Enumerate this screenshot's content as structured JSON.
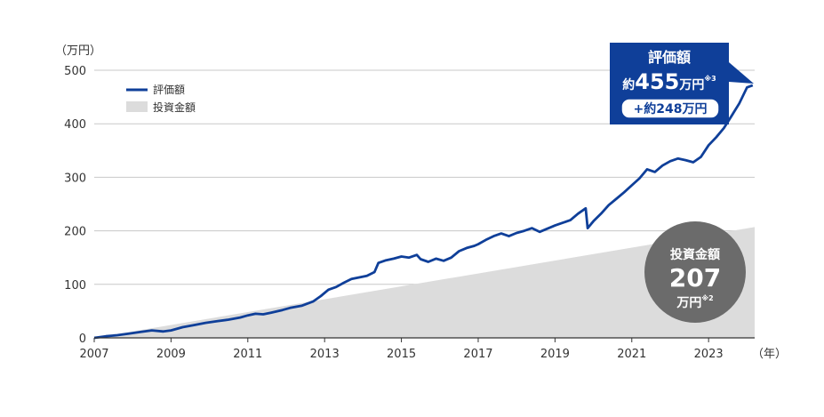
{
  "chart_data": {
    "type": "area",
    "y_unit_label": "（万円）",
    "x_unit_label": "（年）",
    "x_ticks": [
      "2007",
      "2009",
      "2011",
      "2013",
      "2015",
      "2017",
      "2019",
      "2021",
      "2023"
    ],
    "y_ticks": [
      "0",
      "100",
      "200",
      "300",
      "400",
      "500"
    ],
    "xlim": [
      2007,
      2024.2
    ],
    "ylim": [
      0,
      500
    ],
    "grid": true,
    "legend_position": "top-left",
    "colors": {
      "valuation": "#0f3f99",
      "investment": "#dcdcdc",
      "callout": "#0f3f99",
      "bubble": "#6b6b6b"
    },
    "series": [
      {
        "name": "評価額",
        "kind": "line",
        "points": [
          [
            2007.0,
            0
          ],
          [
            2007.3,
            3
          ],
          [
            2007.6,
            5
          ],
          [
            2007.9,
            8
          ],
          [
            2008.2,
            11
          ],
          [
            2008.5,
            14
          ],
          [
            2008.8,
            12
          ],
          [
            2009.0,
            14
          ],
          [
            2009.3,
            20
          ],
          [
            2009.6,
            24
          ],
          [
            2009.9,
            28
          ],
          [
            2010.2,
            31
          ],
          [
            2010.5,
            34
          ],
          [
            2010.8,
            38
          ],
          [
            2011.0,
            42
          ],
          [
            2011.2,
            45
          ],
          [
            2011.4,
            44
          ],
          [
            2011.6,
            47
          ],
          [
            2011.9,
            52
          ],
          [
            2012.1,
            56
          ],
          [
            2012.4,
            60
          ],
          [
            2012.7,
            68
          ],
          [
            2012.9,
            78
          ],
          [
            2013.1,
            90
          ],
          [
            2013.3,
            95
          ],
          [
            2013.5,
            103
          ],
          [
            2013.7,
            110
          ],
          [
            2013.9,
            113
          ],
          [
            2014.1,
            116
          ],
          [
            2014.3,
            123
          ],
          [
            2014.4,
            140
          ],
          [
            2014.6,
            145
          ],
          [
            2014.8,
            148
          ],
          [
            2015.0,
            152
          ],
          [
            2015.2,
            150
          ],
          [
            2015.4,
            155
          ],
          [
            2015.5,
            147
          ],
          [
            2015.7,
            142
          ],
          [
            2015.9,
            148
          ],
          [
            2016.1,
            144
          ],
          [
            2016.3,
            150
          ],
          [
            2016.5,
            162
          ],
          [
            2016.7,
            168
          ],
          [
            2016.9,
            172
          ],
          [
            2017.0,
            175
          ],
          [
            2017.2,
            183
          ],
          [
            2017.4,
            190
          ],
          [
            2017.6,
            195
          ],
          [
            2017.8,
            190
          ],
          [
            2018.0,
            196
          ],
          [
            2018.2,
            200
          ],
          [
            2018.4,
            205
          ],
          [
            2018.6,
            198
          ],
          [
            2018.8,
            204
          ],
          [
            2019.0,
            210
          ],
          [
            2019.2,
            215
          ],
          [
            2019.4,
            220
          ],
          [
            2019.6,
            232
          ],
          [
            2019.8,
            242
          ],
          [
            2019.85,
            205
          ],
          [
            2020.0,
            218
          ],
          [
            2020.2,
            232
          ],
          [
            2020.4,
            248
          ],
          [
            2020.6,
            260
          ],
          [
            2020.8,
            272
          ],
          [
            2021.0,
            285
          ],
          [
            2021.2,
            298
          ],
          [
            2021.4,
            315
          ],
          [
            2021.6,
            310
          ],
          [
            2021.8,
            322
          ],
          [
            2022.0,
            330
          ],
          [
            2022.2,
            335
          ],
          [
            2022.4,
            332
          ],
          [
            2022.6,
            328
          ],
          [
            2022.8,
            338
          ],
          [
            2023.0,
            360
          ],
          [
            2023.2,
            375
          ],
          [
            2023.4,
            392
          ],
          [
            2023.6,
            415
          ],
          [
            2023.8,
            438
          ],
          [
            2024.0,
            468
          ],
          [
            2024.15,
            472
          ]
        ]
      },
      {
        "name": "投資金額",
        "kind": "area",
        "points": [
          [
            2007.0,
            0
          ],
          [
            2024.2,
            207
          ]
        ]
      }
    ],
    "annotations": {
      "valuation_callout": {
        "title": "評価額",
        "prefix": "約",
        "number": "455",
        "unit": "万円",
        "note": "※3",
        "gain": "+約248万円"
      },
      "investment_bubble": {
        "title": "投資金額",
        "number": "207",
        "unit": "万円",
        "note": "※2"
      }
    }
  }
}
